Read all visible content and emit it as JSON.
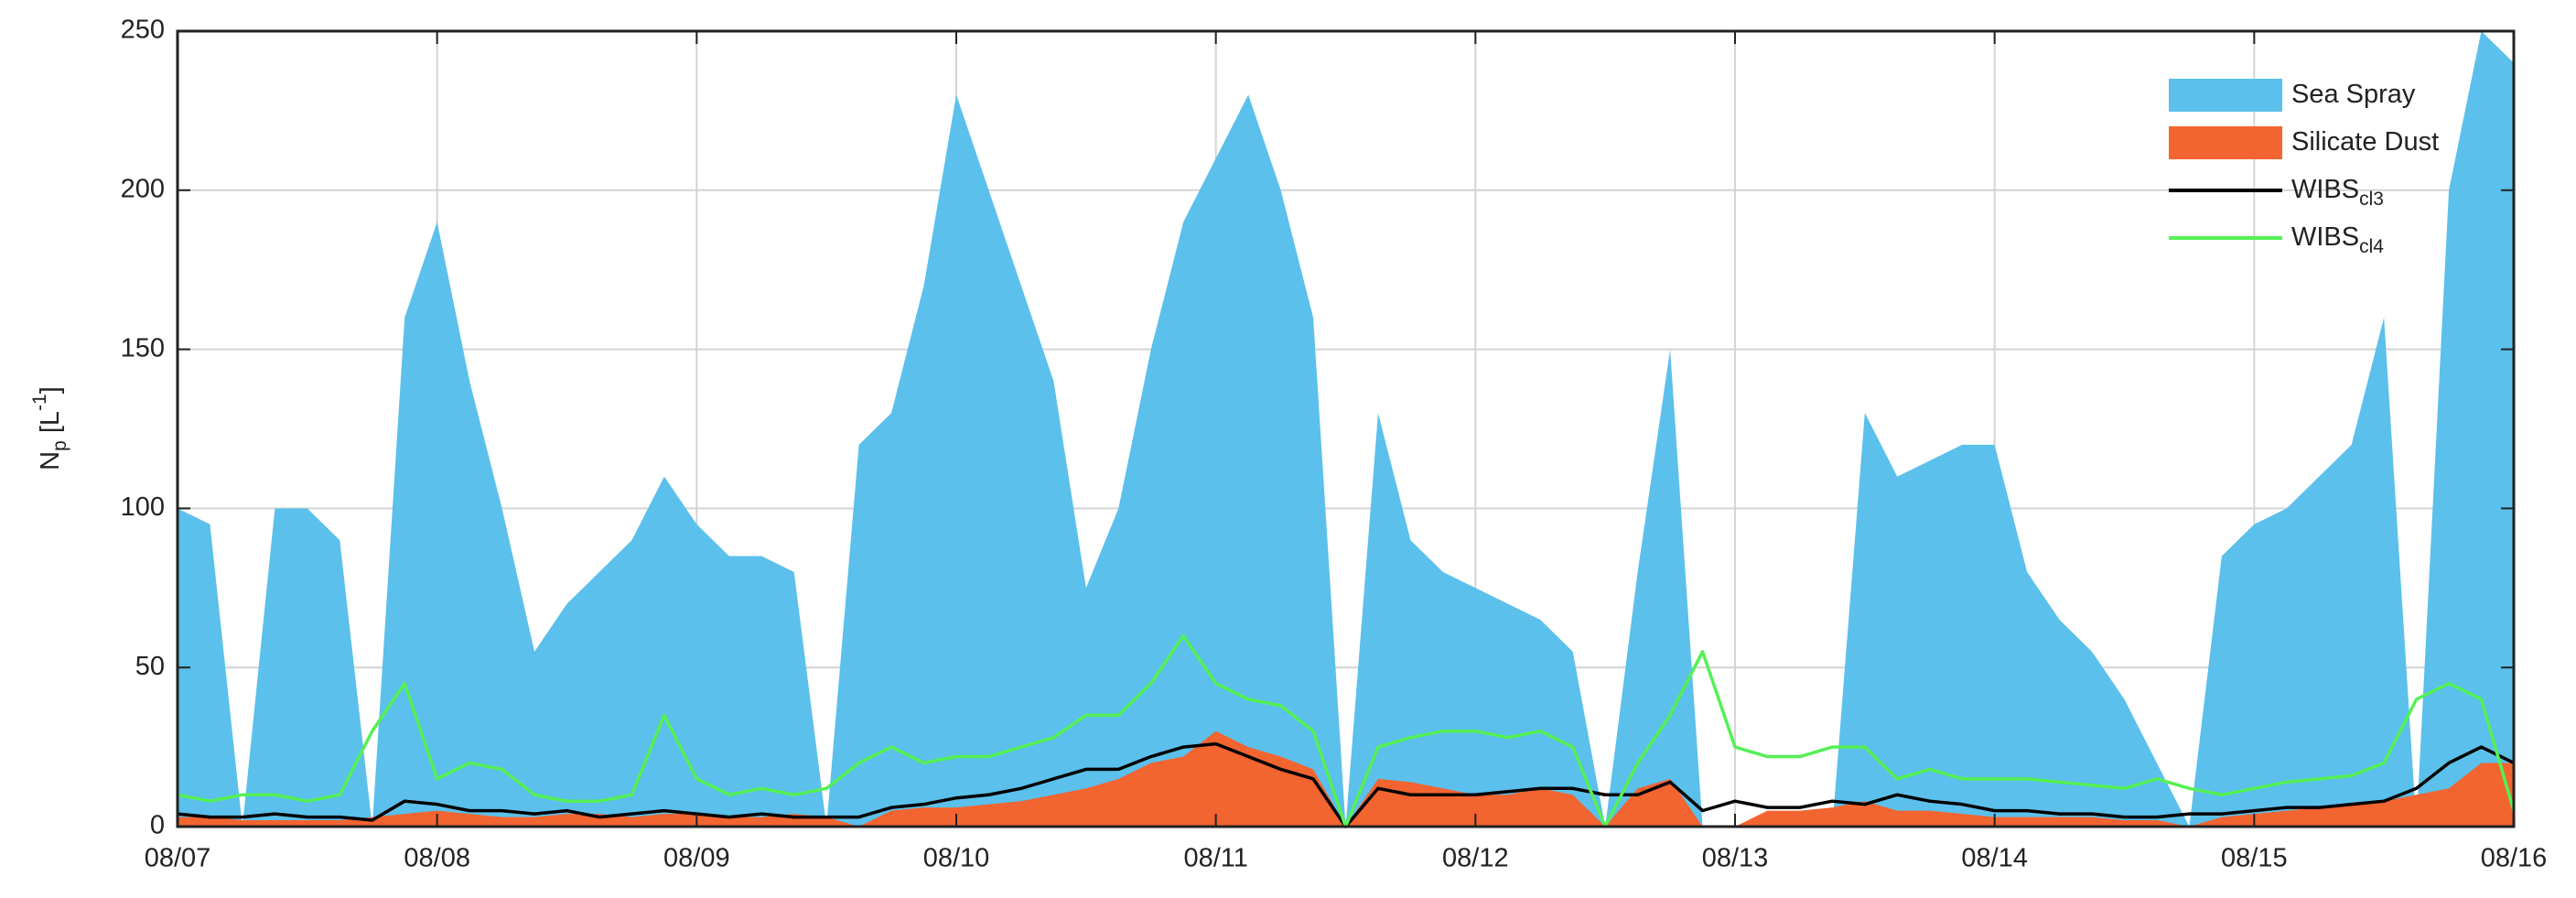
{
  "chart_data": {
    "type": "area",
    "ylabel": {
      "base": "N",
      "sub": "p",
      "mid": " [L",
      "sup": "-1",
      "end": "]"
    },
    "x": [
      0,
      0.125,
      0.25,
      0.375,
      0.5,
      0.625,
      0.75,
      0.875,
      1,
      1.125,
      1.25,
      1.375,
      1.5,
      1.625,
      1.75,
      1.875,
      2,
      2.125,
      2.25,
      2.375,
      2.5,
      2.625,
      2.75,
      2.875,
      3,
      3.125,
      3.25,
      3.375,
      3.5,
      3.625,
      3.75,
      3.875,
      4,
      4.125,
      4.25,
      4.375,
      4.5,
      4.625,
      4.75,
      4.875,
      5,
      5.125,
      5.25,
      5.375,
      5.5,
      5.625,
      5.75,
      5.875,
      6,
      6.125,
      6.25,
      6.375,
      6.5,
      6.625,
      6.75,
      6.875,
      7,
      7.125,
      7.25,
      7.375,
      7.5,
      7.625,
      7.75,
      7.875,
      8,
      8.125,
      8.25,
      8.375,
      8.5,
      8.625,
      8.75,
      8.875,
      9
    ],
    "series": [
      {
        "name": "Sea Spray",
        "kind": "area",
        "color": "#5bc0eb",
        "values": [
          100,
          95,
          0,
          100,
          100,
          90,
          0,
          160,
          190,
          140,
          100,
          55,
          70,
          80,
          90,
          110,
          95,
          85,
          85,
          80,
          0,
          120,
          130,
          170,
          230,
          200,
          170,
          140,
          75,
          100,
          150,
          190,
          210,
          230,
          200,
          160,
          0,
          130,
          90,
          80,
          75,
          70,
          65,
          55,
          0,
          80,
          150,
          0,
          0,
          0,
          0,
          0,
          130,
          110,
          115,
          120,
          120,
          80,
          65,
          55,
          40,
          20,
          0,
          85,
          95,
          100,
          110,
          120,
          160,
          0,
          200,
          250,
          240
        ]
      },
      {
        "name": "Silicate Dust",
        "kind": "area",
        "color": "#f26430",
        "values": [
          3,
          3,
          2,
          2,
          2,
          2,
          3,
          4,
          5,
          4,
          3,
          3,
          4,
          4,
          3,
          4,
          4,
          3,
          3,
          4,
          3,
          0,
          5,
          6,
          6,
          7,
          8,
          10,
          12,
          15,
          20,
          22,
          30,
          25,
          22,
          18,
          0,
          15,
          14,
          12,
          10,
          10,
          12,
          10,
          0,
          12,
          15,
          0,
          0,
          5,
          5,
          6,
          8,
          5,
          5,
          4,
          3,
          3,
          3,
          3,
          2,
          2,
          0,
          3,
          4,
          5,
          6,
          7,
          8,
          10,
          12,
          20,
          20
        ]
      },
      {
        "name": "WIBS",
        "name_subscript": "cl3",
        "kind": "line",
        "color": "#000000",
        "values": [
          4,
          3,
          3,
          4,
          3,
          3,
          2,
          8,
          7,
          5,
          5,
          4,
          5,
          3,
          4,
          5,
          4,
          3,
          4,
          3,
          3,
          3,
          6,
          7,
          9,
          10,
          12,
          15,
          18,
          18,
          22,
          25,
          26,
          22,
          18,
          15,
          0,
          12,
          10,
          10,
          10,
          11,
          12,
          12,
          10,
          10,
          14,
          5,
          8,
          6,
          6,
          8,
          7,
          10,
          8,
          7,
          5,
          5,
          4,
          4,
          3,
          3,
          4,
          4,
          5,
          6,
          6,
          7,
          8,
          12,
          20,
          25,
          20
        ]
      },
      {
        "name": "WIBS",
        "name_subscript": "cl4",
        "kind": "line",
        "color": "#55f055",
        "values": [
          10,
          8,
          10,
          10,
          8,
          10,
          30,
          45,
          15,
          20,
          18,
          10,
          8,
          8,
          10,
          35,
          15,
          10,
          12,
          10,
          12,
          20,
          25,
          20,
          22,
          22,
          25,
          28,
          35,
          35,
          45,
          60,
          45,
          40,
          38,
          30,
          0,
          25,
          28,
          30,
          30,
          28,
          30,
          25,
          0,
          20,
          35,
          55,
          25,
          22,
          22,
          25,
          25,
          15,
          18,
          15,
          15,
          15,
          14,
          13,
          12,
          15,
          12,
          10,
          12,
          14,
          15,
          16,
          20,
          40,
          45,
          40,
          5
        ]
      }
    ],
    "xlim": [
      0,
      9
    ],
    "xticks": [
      {
        "value": 0,
        "label": "08/07"
      },
      {
        "value": 1,
        "label": "08/08"
      },
      {
        "value": 2,
        "label": "08/09"
      },
      {
        "value": 3,
        "label": "08/10"
      },
      {
        "value": 4,
        "label": "08/11"
      },
      {
        "value": 5,
        "label": "08/12"
      },
      {
        "value": 6,
        "label": "08/13"
      },
      {
        "value": 7,
        "label": "08/14"
      },
      {
        "value": 8,
        "label": "08/15"
      },
      {
        "value": 9,
        "label": "08/16"
      }
    ],
    "ylim": [
      0,
      250
    ],
    "yticks": [
      0,
      50,
      100,
      150,
      200,
      250
    ],
    "grid": true,
    "legend": "upper right"
  }
}
